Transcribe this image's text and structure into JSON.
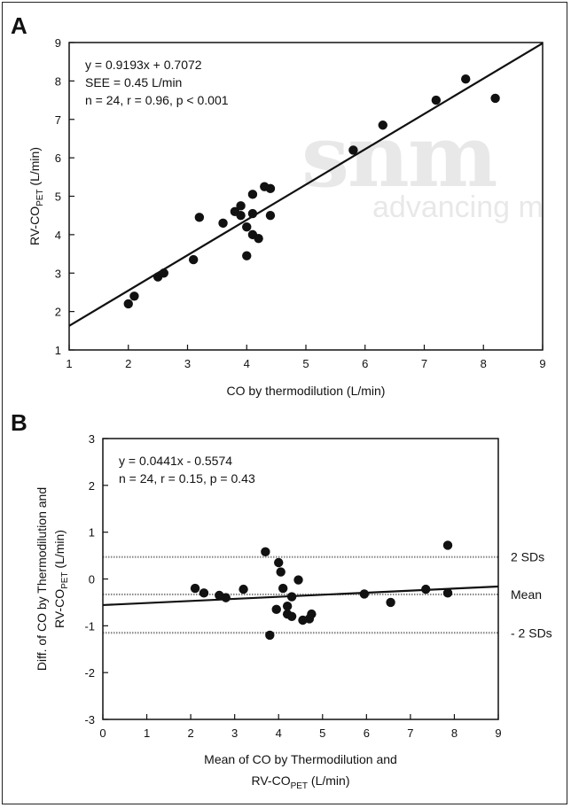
{
  "panels": {
    "a": {
      "letter": "A"
    },
    "b": {
      "letter": "B"
    }
  },
  "watermark": {
    "logo": "snm",
    "tagline": "advancing m"
  },
  "chart_data": [
    {
      "type": "scatter",
      "panel": "A",
      "xlabel": "CO by thermodilution (L/min)",
      "ylabel_main": "RV-CO",
      "ylabel_sub": "PET",
      "ylabel_tail": "  (L/min)",
      "xlim": [
        1,
        9
      ],
      "ylim": [
        1,
        9
      ],
      "xticks": [
        1,
        2,
        3,
        4,
        5,
        6,
        7,
        8,
        9
      ],
      "yticks": [
        1,
        2,
        3,
        4,
        5,
        6,
        7,
        8,
        9
      ],
      "grid": false,
      "annotations": [
        "y = 0.9193x + 0.7072",
        "SEE = 0.45 L/min",
        "n = 24,  r = 0.96,  p < 0.001"
      ],
      "regression": {
        "slope": 0.9193,
        "intercept": 0.7072
      },
      "points": [
        {
          "x": 2.0,
          "y": 2.2
        },
        {
          "x": 2.1,
          "y": 2.4
        },
        {
          "x": 2.5,
          "y": 2.9
        },
        {
          "x": 2.6,
          "y": 3.0
        },
        {
          "x": 3.1,
          "y": 3.35
        },
        {
          "x": 3.2,
          "y": 4.45
        },
        {
          "x": 3.6,
          "y": 4.3
        },
        {
          "x": 3.8,
          "y": 4.6
        },
        {
          "x": 3.9,
          "y": 4.75
        },
        {
          "x": 3.9,
          "y": 4.5
        },
        {
          "x": 4.0,
          "y": 4.2
        },
        {
          "x": 4.0,
          "y": 3.45
        },
        {
          "x": 4.1,
          "y": 5.05
        },
        {
          "x": 4.1,
          "y": 4.55
        },
        {
          "x": 4.1,
          "y": 4.0
        },
        {
          "x": 4.2,
          "y": 3.9
        },
        {
          "x": 4.3,
          "y": 5.25
        },
        {
          "x": 4.4,
          "y": 5.2
        },
        {
          "x": 4.4,
          "y": 4.5
        },
        {
          "x": 5.8,
          "y": 6.2
        },
        {
          "x": 6.3,
          "y": 6.85
        },
        {
          "x": 7.2,
          "y": 7.5
        },
        {
          "x": 7.7,
          "y": 8.05
        },
        {
          "x": 8.2,
          "y": 7.55
        }
      ]
    },
    {
      "type": "scatter",
      "panel": "B",
      "xlabel_line1": "Mean of CO by Thermodilution and",
      "xlabel_line2_main": "RV-CO",
      "xlabel_line2_sub": "PET",
      "xlabel_line2_tail": "  (L/min)",
      "ylabel_line1": "Diff. of CO by Thermodilution and",
      "ylabel_line2_main": "RV-CO",
      "ylabel_line2_sub": "PET",
      "ylabel_line2_tail": "  (L/min)",
      "xlim": [
        0,
        9
      ],
      "ylim": [
        -3,
        3
      ],
      "xticks": [
        0,
        1,
        2,
        3,
        4,
        5,
        6,
        7,
        8,
        9
      ],
      "yticks": [
        -3,
        -2,
        -1,
        0,
        1,
        2,
        3
      ],
      "grid": false,
      "annotations": [
        "y = 0.0441x - 0.5574",
        "n = 24,  r = 0.15,  p = 0.43"
      ],
      "regression": {
        "slope": 0.0441,
        "intercept": -0.5574
      },
      "reference_lines": [
        {
          "label": "2 SDs",
          "y": 0.47
        },
        {
          "label": "Mean",
          "y": -0.33
        },
        {
          "label": "- 2 SDs",
          "y": -1.15
        }
      ],
      "points": [
        {
          "x": 2.1,
          "y": -0.2
        },
        {
          "x": 2.3,
          "y": -0.3
        },
        {
          "x": 2.65,
          "y": -0.35
        },
        {
          "x": 2.8,
          "y": -0.4
        },
        {
          "x": 3.2,
          "y": -0.22
        },
        {
          "x": 3.7,
          "y": 0.58
        },
        {
          "x": 3.8,
          "y": -1.2
        },
        {
          "x": 3.95,
          "y": -0.65
        },
        {
          "x": 4.0,
          "y": 0.35
        },
        {
          "x": 4.05,
          "y": 0.15
        },
        {
          "x": 4.1,
          "y": -0.2
        },
        {
          "x": 4.2,
          "y": -0.58
        },
        {
          "x": 4.2,
          "y": -0.75
        },
        {
          "x": 4.3,
          "y": -0.38
        },
        {
          "x": 4.3,
          "y": -0.8
        },
        {
          "x": 4.45,
          "y": -0.02
        },
        {
          "x": 4.55,
          "y": -0.88
        },
        {
          "x": 4.7,
          "y": -0.85
        },
        {
          "x": 4.75,
          "y": -0.75
        },
        {
          "x": 5.95,
          "y": -0.32
        },
        {
          "x": 6.55,
          "y": -0.5
        },
        {
          "x": 7.35,
          "y": -0.22
        },
        {
          "x": 7.85,
          "y": 0.72
        },
        {
          "x": 7.85,
          "y": -0.3
        }
      ]
    }
  ]
}
